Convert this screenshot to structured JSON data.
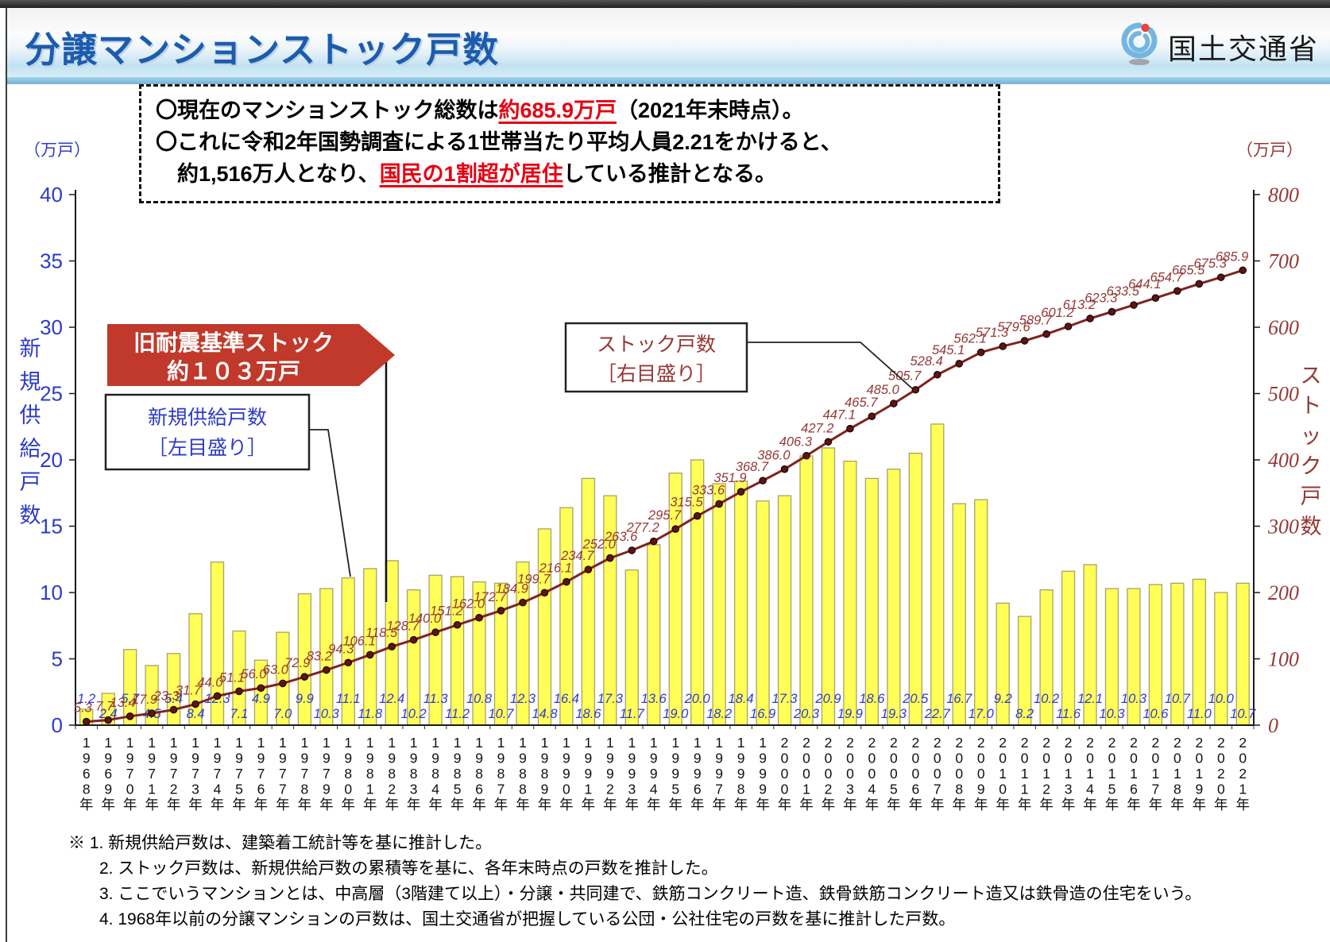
{
  "header": {
    "title": "分譲マンションストック戸数",
    "agency": "国土交通省"
  },
  "summary": {
    "l1a": "〇現在のマンションストック総数は",
    "l1b": "約685.9万戸",
    "l1c": "（2021年末時点）。",
    "l2": "〇これに令和2年国勢調査による1世帯当たり平均人員2.21をかけると、",
    "l3a": "　約1,516万人となり、",
    "l3b": "国民の1割超が居住",
    "l3c": "している推計となる。"
  },
  "chart_data": {
    "type": "bar",
    "subtype": "bar+line combo",
    "grid": false,
    "category_suffix": "年",
    "categories": [
      "1968",
      "1969",
      "1970",
      "1971",
      "1972",
      "1973",
      "1974",
      "1975",
      "1976",
      "1977",
      "1978",
      "1979",
      "1980",
      "1981",
      "1982",
      "1983",
      "1984",
      "1985",
      "1986",
      "1987",
      "1988",
      "1989",
      "1990",
      "1991",
      "1992",
      "1993",
      "1994",
      "1995",
      "1996",
      "1997",
      "1998",
      "1999",
      "2000",
      "2001",
      "2002",
      "2003",
      "2004",
      "2005",
      "2006",
      "2007",
      "2008",
      "2009",
      "2010",
      "2011",
      "2012",
      "2013",
      "2014",
      "2015",
      "2016",
      "2017",
      "2018",
      "2019",
      "2020",
      "2021"
    ],
    "series": [
      {
        "name": "新規供給戸数",
        "chart": "bar",
        "axis": "left",
        "values": [
          "1.2",
          "2.4",
          "5.7",
          "4.5",
          "5.4",
          "8.4",
          "12.3",
          "7.1",
          "4.9",
          "7.0",
          "9.9",
          "10.3",
          "11.1",
          "11.8",
          "12.4",
          "10.2",
          "11.3",
          "11.2",
          "10.8",
          "10.7",
          "12.3",
          "14.8",
          "16.4",
          "18.6",
          "17.3",
          "11.7",
          "13.6",
          "19.0",
          "20.0",
          "18.2",
          "18.4",
          "16.9",
          "17.3",
          "20.3",
          "20.9",
          "19.9",
          "18.6",
          "19.3",
          "20.5",
          "22.7",
          "16.7",
          "17.0",
          "9.2",
          "8.2",
          "10.2",
          "11.6",
          "12.1",
          "10.3",
          "10.3",
          "10.6",
          "10.7",
          "11.0",
          "10.0",
          "10.7"
        ]
      },
      {
        "name": "ストック戸数",
        "chart": "line",
        "axis": "right",
        "values": [
          "5.3",
          "7.7",
          "13.4",
          "17.9",
          "23.3",
          "31.7",
          "44.0",
          "51.1",
          "56.0",
          "63.0",
          "72.9",
          "83.2",
          "94.3",
          "106.1",
          "118.5",
          "128.7",
          "140.0",
          "151.2",
          "162.0",
          "172.7",
          "184.9",
          "199.7",
          "216.1",
          "234.7",
          "252.0",
          "263.6",
          "277.2",
          "295.7",
          "315.5",
          "333.6",
          "351.9",
          "368.7",
          "386.0",
          "406.3",
          "427.2",
          "447.1",
          "465.7",
          "485.0",
          "505.7",
          "528.4",
          "545.1",
          "562.1",
          "571.3",
          "579.6",
          "589.7",
          "601.2",
          "613.2",
          "623.3",
          "633.5",
          "644.1",
          "654.7",
          "665.5",
          "675.3",
          "685.9"
        ]
      }
    ],
    "left_axis": {
      "unit": "（万戸）",
      "title": "新規供給戸数",
      "min": 0,
      "max": 40,
      "step": 5
    },
    "right_axis": {
      "unit": "（万戸）",
      "title": "ストック戸数",
      "min": 0,
      "max": 800,
      "step": 100
    },
    "annotations": {
      "old_stock_arrow": [
        "旧耐震基準ストック",
        "約１０３万戸"
      ],
      "supply_legend": [
        "新規供給戸数",
        "［左目盛り］"
      ],
      "stock_legend": [
        "ストック戸数",
        "［右目盛り］"
      ]
    }
  },
  "colors": {
    "bar_fill": "#ffff57",
    "bar_stroke": "#a8a269",
    "line": "#7f2320",
    "marker": "#5e1512",
    "blue": "#2e3bc7",
    "maroon": "#953735",
    "arrow": "#c0392b",
    "axis": "#1a1a1a",
    "title_blue": "#1c5cad",
    "highlight_red": "#e60012"
  },
  "footnotes": [
    "※ 1. 新規供給戸数は、建築着工統計等を基に推計した。",
    "2. ストック戸数は、新規供給戸数の累積等を基に、各年末時点の戸数を推計した。",
    "3. ここでいうマンションとは、中高層（3階建て以上）・分譲・共同建で、鉄筋コンクリート造、鉄骨鉄筋コンクリート造又は鉄骨造の住宅をいう。",
    "4. 1968年以前の分譲マンションの戸数は、国土交通省が把握している公団・公社住宅の戸数を基に推計した戸数。"
  ]
}
